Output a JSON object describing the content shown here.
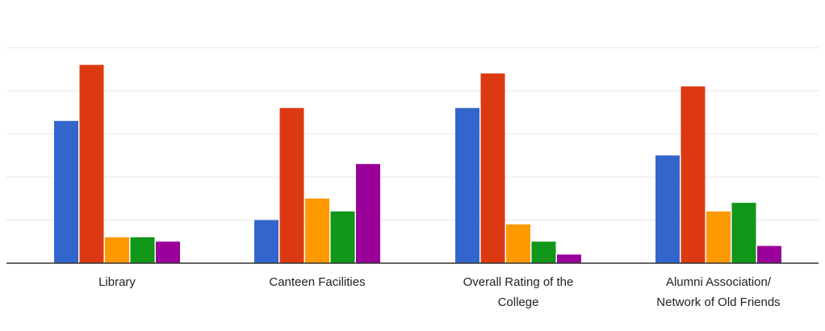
{
  "chart_data": {
    "type": "bar",
    "categories": [
      [
        "Library"
      ],
      [
        "Canteen Facilities"
      ],
      [
        "Overall Rating of the",
        "College"
      ],
      [
        "Alumni Association/",
        "Network of Old Friends"
      ]
    ],
    "series": [
      {
        "color": "#3366cc",
        "values": [
          33,
          10,
          36,
          25
        ]
      },
      {
        "color": "#dc3912",
        "values": [
          46,
          36,
          44,
          41
        ]
      },
      {
        "color": "#ff9900",
        "values": [
          6,
          15,
          9,
          12
        ]
      },
      {
        "color": "#109618",
        "values": [
          6,
          12,
          5,
          14
        ]
      },
      {
        "color": "#990099",
        "values": [
          5,
          23,
          2,
          4
        ]
      }
    ],
    "ylim": [
      0,
      50
    ],
    "gridlines": [
      0,
      10,
      20,
      30,
      40,
      50
    ],
    "grid": true,
    "legend": "none",
    "colors": {
      "gridline": "#e6e6e6",
      "baseline": "#333333"
    }
  }
}
